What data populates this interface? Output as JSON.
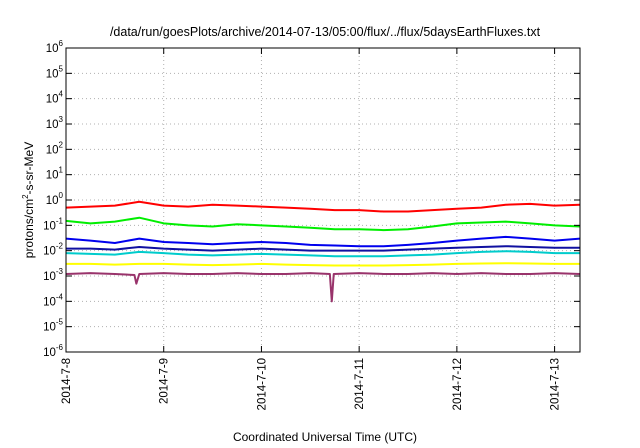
{
  "chart_data": {
    "type": "line",
    "title": "/data/run/goesPlots/archive/2014-07-13/05:00/flux/../flux/5daysEarthFluxes.txt",
    "xlabel": "Coordinated Universal Time (UTC)",
    "ylabel": "protons/cm2-s-sr-MeV",
    "ylabel_parts": {
      "base": "protons/cm",
      "sup": "2",
      "rest": "-s-sr-MeV"
    },
    "yscale": "log",
    "ylim": [
      1e-06,
      1000000.0
    ],
    "y_ticks": [
      {
        "base": "10",
        "exp": "-6"
      },
      {
        "base": "10",
        "exp": "-5"
      },
      {
        "base": "10",
        "exp": "-4"
      },
      {
        "base": "10",
        "exp": "-3"
      },
      {
        "base": "10",
        "exp": "-2"
      },
      {
        "base": "10",
        "exp": "-1"
      },
      {
        "base": "10",
        "exp": "0"
      },
      {
        "base": "10",
        "exp": "1"
      },
      {
        "base": "10",
        "exp": "2"
      },
      {
        "base": "10",
        "exp": "3"
      },
      {
        "base": "10",
        "exp": "4"
      },
      {
        "base": "10",
        "exp": "5"
      },
      {
        "base": "10",
        "exp": "6"
      }
    ],
    "x_ticks": [
      "2014-7-8",
      "2014-7-9",
      "2014-7-10",
      "2014-7-11",
      "2014-7-12",
      "2014-7-13"
    ],
    "x_range_days": [
      0,
      5.26
    ],
    "grid": true,
    "series": [
      {
        "color": "#ff0000",
        "x": [
          0,
          0.25,
          0.5,
          0.75,
          1,
          1.25,
          1.5,
          1.75,
          2,
          2.25,
          2.5,
          2.75,
          3,
          3.25,
          3.5,
          3.75,
          4,
          4.25,
          4.5,
          4.75,
          5,
          5.26
        ],
        "y": [
          0.5,
          0.55,
          0.6,
          0.85,
          0.6,
          0.55,
          0.65,
          0.6,
          0.55,
          0.5,
          0.45,
          0.4,
          0.4,
          0.35,
          0.35,
          0.4,
          0.45,
          0.5,
          0.65,
          0.7,
          0.6,
          0.65
        ]
      },
      {
        "color": "#00ee00",
        "x": [
          0,
          0.25,
          0.5,
          0.75,
          1,
          1.25,
          1.5,
          1.75,
          2,
          2.25,
          2.5,
          2.75,
          3,
          3.25,
          3.5,
          3.75,
          4,
          4.25,
          4.5,
          4.75,
          5,
          5.26
        ],
        "y": [
          0.15,
          0.12,
          0.14,
          0.2,
          0.12,
          0.1,
          0.09,
          0.11,
          0.1,
          0.09,
          0.08,
          0.07,
          0.07,
          0.065,
          0.07,
          0.09,
          0.12,
          0.13,
          0.14,
          0.12,
          0.1,
          0.09
        ]
      },
      {
        "color": "#0000ee",
        "x": [
          0,
          0.25,
          0.5,
          0.75,
          1,
          1.25,
          1.5,
          1.75,
          2,
          2.25,
          2.5,
          2.75,
          3,
          3.25,
          3.5,
          3.75,
          4,
          4.25,
          4.5,
          4.75,
          5,
          5.26
        ],
        "y": [
          0.03,
          0.025,
          0.02,
          0.03,
          0.022,
          0.02,
          0.018,
          0.02,
          0.022,
          0.02,
          0.017,
          0.016,
          0.015,
          0.015,
          0.017,
          0.02,
          0.025,
          0.03,
          0.035,
          0.03,
          0.025,
          0.03
        ]
      },
      {
        "color": "#1010a0",
        "x": [
          0,
          0.25,
          0.5,
          0.75,
          1,
          1.25,
          1.5,
          1.75,
          2,
          2.25,
          2.5,
          2.75,
          3,
          3.25,
          3.5,
          3.75,
          4,
          4.25,
          4.5,
          4.75,
          5,
          5.26
        ],
        "y": [
          0.012,
          0.012,
          0.011,
          0.014,
          0.012,
          0.011,
          0.01,
          0.011,
          0.012,
          0.011,
          0.01,
          0.01,
          0.01,
          0.01,
          0.011,
          0.012,
          0.013,
          0.014,
          0.015,
          0.014,
          0.013,
          0.013
        ]
      },
      {
        "color": "#00cccc",
        "x": [
          0,
          0.25,
          0.5,
          0.75,
          1,
          1.25,
          1.5,
          1.75,
          2,
          2.25,
          2.5,
          2.75,
          3,
          3.25,
          3.5,
          3.75,
          4,
          4.25,
          4.5,
          4.75,
          5,
          5.26
        ],
        "y": [
          0.008,
          0.0075,
          0.007,
          0.009,
          0.008,
          0.007,
          0.0065,
          0.007,
          0.0075,
          0.007,
          0.0065,
          0.006,
          0.006,
          0.006,
          0.0065,
          0.007,
          0.008,
          0.009,
          0.0095,
          0.009,
          0.008,
          0.008
        ]
      },
      {
        "color": "#ffff00",
        "x": [
          0,
          0.25,
          0.5,
          0.75,
          1,
          1.25,
          1.5,
          1.75,
          2,
          2.25,
          2.5,
          2.75,
          3,
          3.25,
          3.5,
          3.75,
          4,
          4.25,
          4.5,
          4.75,
          5,
          5.26
        ],
        "y": [
          0.003,
          0.003,
          0.0028,
          0.003,
          0.003,
          0.0028,
          0.0027,
          0.0028,
          0.003,
          0.0028,
          0.0027,
          0.0026,
          0.0026,
          0.0026,
          0.0027,
          0.0028,
          0.003,
          0.0031,
          0.0032,
          0.0031,
          0.003,
          0.003
        ]
      },
      {
        "color": "#99336b",
        "x": [
          0,
          0.25,
          0.5,
          0.7,
          0.72,
          0.75,
          1,
          1.25,
          1.5,
          1.75,
          2,
          2.25,
          2.5,
          2.7,
          2.72,
          2.74,
          3,
          3.25,
          3.5,
          3.75,
          4,
          4.25,
          4.5,
          4.75,
          5,
          5.26
        ],
        "y": [
          0.0012,
          0.0013,
          0.0012,
          0.0011,
          0.0005,
          0.0012,
          0.0013,
          0.0012,
          0.0012,
          0.0013,
          0.0012,
          0.0012,
          0.0013,
          0.0012,
          0.0001,
          0.0012,
          0.0013,
          0.0012,
          0.0012,
          0.0013,
          0.0012,
          0.0013,
          0.0012,
          0.0012,
          0.0013,
          0.0012
        ]
      }
    ]
  }
}
